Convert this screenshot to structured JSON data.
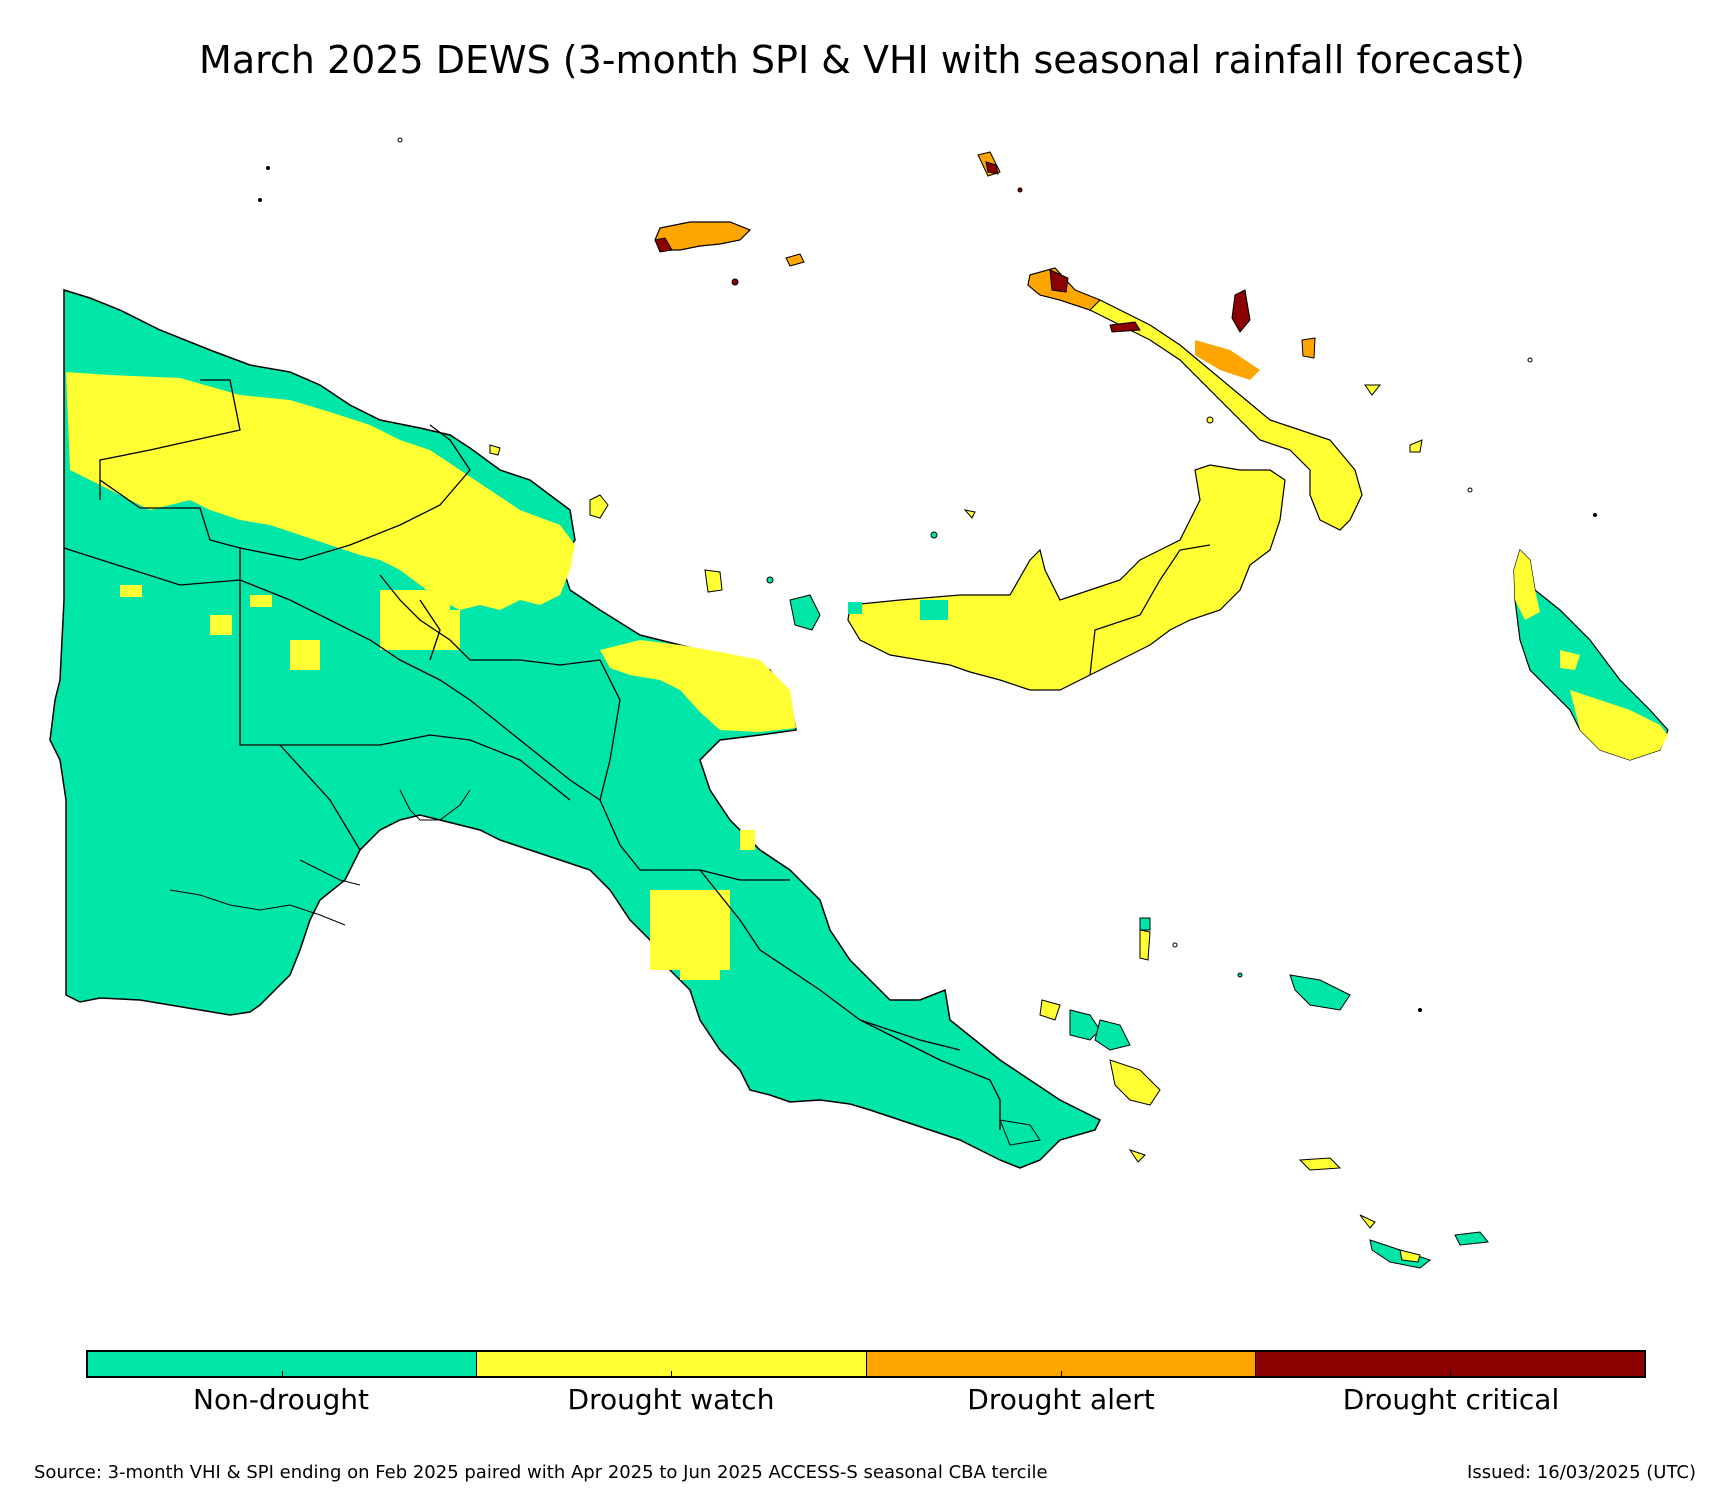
{
  "title": "March 2025 DEWS (3-month SPI & VHI with seasonal rainfall forecast)",
  "legend": {
    "categories": [
      {
        "label": "Non-drought",
        "color": "#00e6a8"
      },
      {
        "label": "Drought watch",
        "color": "#ffff33"
      },
      {
        "label": "Drought alert",
        "color": "#ffa500"
      },
      {
        "label": "Drought critical",
        "color": "#8b0000"
      }
    ]
  },
  "footer": {
    "source": "Source: 3-month VHI & SPI ending on Feb 2025 paired with Apr 2025 to Jun 2025 ACCESS-S seasonal CBA tercile",
    "issued": "Issued: 16/03/2025 (UTC)"
  },
  "colors": {
    "non_drought": "#00e6a8",
    "watch": "#ffff33",
    "alert": "#ffa500",
    "critical": "#8b0000",
    "boundary": "#000000"
  }
}
